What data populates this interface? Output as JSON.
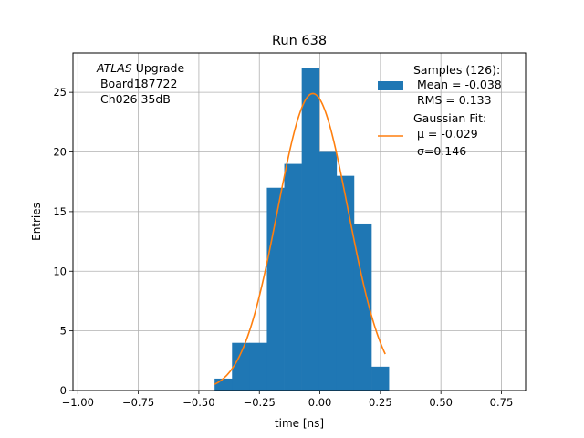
{
  "chart_data": {
    "type": "bar",
    "title": "Run 638",
    "xlabel": "time [ns]",
    "ylabel": "Entries",
    "xlim": [
      -1.02,
      0.85
    ],
    "ylim": [
      0,
      28.3
    ],
    "grid": true,
    "xticks": [
      "−1.00",
      "−0.75",
      "−0.50",
      "−0.25",
      "0.00",
      "0.25",
      "0.50",
      "0.75"
    ],
    "xtick_values": [
      -1.0,
      -0.75,
      -0.5,
      -0.25,
      0.0,
      0.25,
      0.5,
      0.75
    ],
    "yticks": [
      "0",
      "5",
      "10",
      "15",
      "20",
      "25"
    ],
    "ytick_values": [
      0,
      5,
      10,
      15,
      20,
      25
    ],
    "bin_edges": [
      -0.435,
      -0.363,
      -0.291,
      -0.219,
      -0.147,
      -0.075,
      -0.003,
      0.069,
      0.141,
      0.213,
      0.285
    ],
    "bin_counts": [
      1,
      4,
      4,
      17,
      19,
      27,
      20,
      18,
      14,
      2
    ],
    "fit": {
      "mu": -0.029,
      "sigma": 0.146,
      "amplitude": 24.9,
      "x_range": [
        -0.435,
        0.27
      ]
    },
    "annotation_lines": [
      "ATLAS Upgrade",
      " Board187722",
      " Ch026 35dB"
    ],
    "legend": {
      "placement": "top-right",
      "entries": [
        {
          "kind": "bar",
          "color": "#1f77b4",
          "lines": [
            "Samples (126):",
            " Mean = -0.038",
            " RMS = 0.133"
          ]
        },
        {
          "kind": "line",
          "color": "#ff7f0e",
          "lines": [
            "Gaussian Fit:",
            " μ = -0.029",
            " σ=0.146"
          ]
        }
      ]
    },
    "colors": {
      "bars": "#1f77b4",
      "fit": "#ff7f0e",
      "grid": "#b0b0b0"
    }
  }
}
